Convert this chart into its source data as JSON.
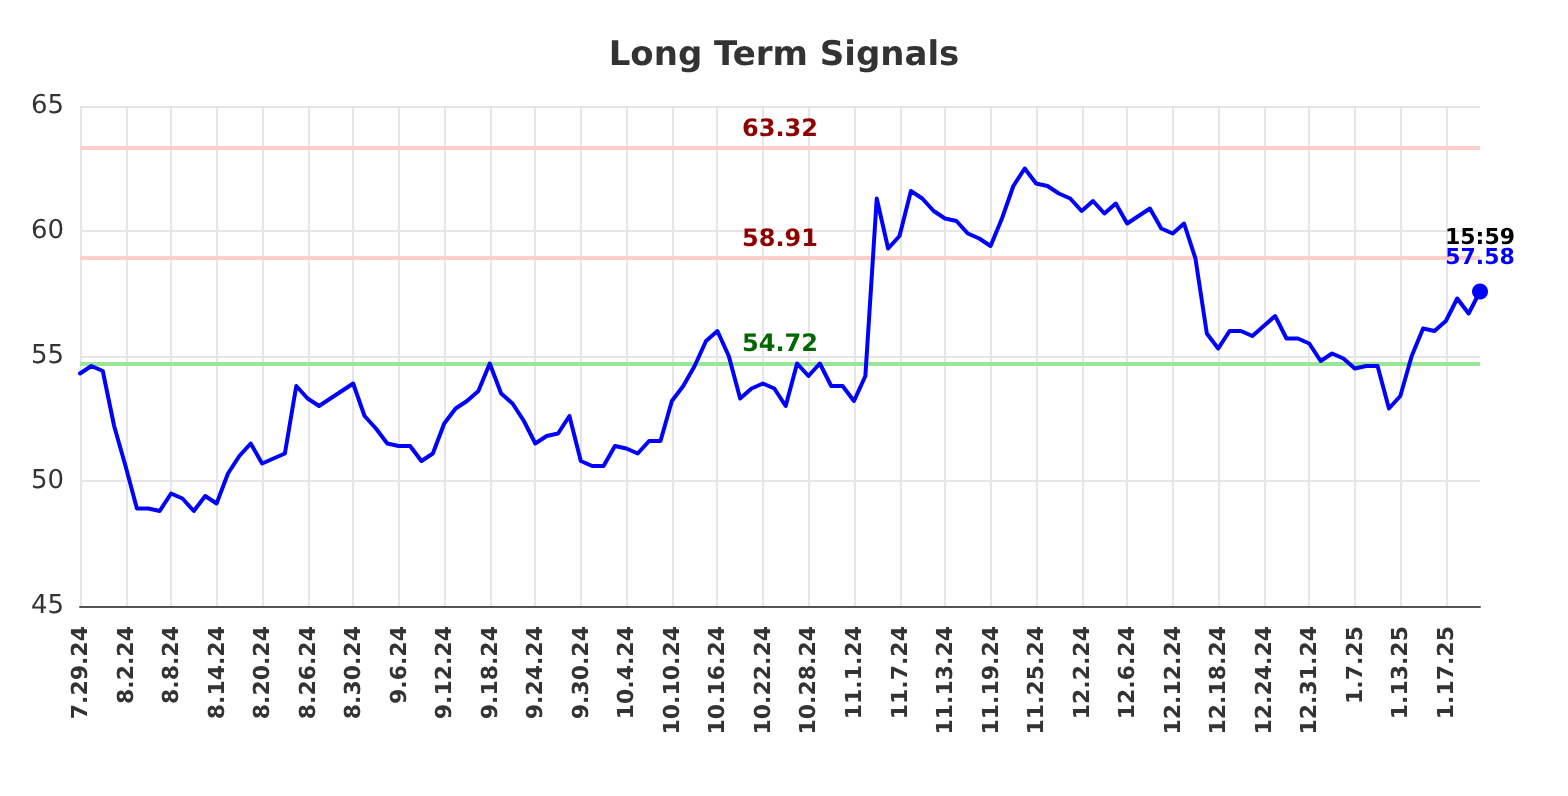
{
  "chart_data": {
    "type": "line",
    "title": "Long Term Signals",
    "categories": [
      "7.29.24",
      null,
      null,
      null,
      "8.2.24",
      null,
      null,
      null,
      "8.8.24",
      null,
      null,
      null,
      "8.14.24",
      null,
      null,
      null,
      "8.20.24",
      null,
      null,
      null,
      "8.26.24",
      null,
      null,
      null,
      "8.30.24",
      null,
      null,
      null,
      "9.6.24",
      null,
      null,
      null,
      "9.12.24",
      null,
      null,
      null,
      "9.18.24",
      null,
      null,
      null,
      "9.24.24",
      null,
      null,
      null,
      "9.30.24",
      null,
      null,
      null,
      "10.4.24",
      null,
      null,
      null,
      "10.10.24",
      null,
      null,
      null,
      "10.16.24",
      null,
      null,
      null,
      "10.22.24",
      null,
      null,
      null,
      "10.28.24",
      null,
      null,
      null,
      "11.1.24",
      null,
      null,
      null,
      "11.7.24",
      null,
      null,
      null,
      "11.13.24",
      null,
      null,
      null,
      "11.19.24",
      null,
      null,
      null,
      "11.25.24",
      null,
      null,
      null,
      "12.2.24",
      null,
      null,
      null,
      "12.6.24",
      null,
      null,
      null,
      "12.12.24",
      null,
      null,
      null,
      "12.18.24",
      null,
      null,
      null,
      "12.24.24",
      null,
      null,
      null,
      "12.31.24",
      null,
      null,
      null,
      "1.7.25",
      null,
      null,
      null,
      "1.13.25",
      null,
      null,
      null,
      "1.17.25",
      null,
      null,
      null
    ],
    "series": [
      {
        "color": "#0000ff",
        "values": [
          54.3,
          54.6,
          54.4,
          52.2,
          50.6,
          48.9,
          48.9,
          48.8,
          49.5,
          49.3,
          48.8,
          49.4,
          49.1,
          50.3,
          51.0,
          51.5,
          50.7,
          50.9,
          51.1,
          53.8,
          53.3,
          53.0,
          53.3,
          53.6,
          53.9,
          52.6,
          52.1,
          51.5,
          51.4,
          51.4,
          50.8,
          51.1,
          52.3,
          52.9,
          53.2,
          53.6,
          54.7,
          53.5,
          53.1,
          52.4,
          51.5,
          51.8,
          51.9,
          52.6,
          50.8,
          50.6,
          50.6,
          51.4,
          51.3,
          51.1,
          51.6,
          51.6,
          53.2,
          53.8,
          54.6,
          55.6,
          56.0,
          55.0,
          53.3,
          53.7,
          53.9,
          53.7,
          53.0,
          54.7,
          54.2,
          54.7,
          53.8,
          53.8,
          53.2,
          54.2,
          61.3,
          59.3,
          59.8,
          61.6,
          61.3,
          60.8,
          60.5,
          60.4,
          59.9,
          59.7,
          59.4,
          60.5,
          61.8,
          62.5,
          61.9,
          61.8,
          61.5,
          61.3,
          60.8,
          61.2,
          60.7,
          61.1,
          60.3,
          60.6,
          60.9,
          60.1,
          59.9,
          60.3,
          58.9,
          55.9,
          55.3,
          56.0,
          56.0,
          55.8,
          56.2,
          56.6,
          55.7,
          55.7,
          55.5,
          54.8,
          55.1,
          54.9,
          54.5,
          54.6,
          54.6,
          52.9,
          53.4,
          55.0,
          56.1,
          56.0,
          56.4,
          57.3,
          56.7,
          57.58
        ],
        "value_labels": [
          null,
          null,
          null,
          null,
          null,
          null,
          null,
          null,
          null,
          null,
          null,
          null,
          null,
          null,
          null,
          null,
          null,
          null,
          null,
          null,
          null,
          null,
          null,
          null,
          null,
          null,
          null,
          null,
          null,
          null,
          null,
          null,
          null,
          null,
          null,
          null,
          null,
          null,
          null,
          null,
          null,
          null,
          null,
          null,
          null,
          null,
          null,
          null,
          null,
          null,
          null,
          null,
          null,
          null,
          null,
          null,
          null,
          null,
          null,
          null,
          null,
          null,
          null,
          null,
          null,
          null,
          null,
          null,
          null,
          null,
          null,
          null,
          null,
          null,
          null,
          null,
          null,
          null,
          null,
          null,
          null,
          null,
          null,
          null,
          null,
          null,
          null,
          null,
          null,
          null,
          null,
          null,
          null,
          null,
          null,
          null,
          null,
          null,
          null,
          null,
          null,
          null,
          null,
          null,
          null,
          null,
          null,
          null,
          null,
          null,
          null,
          null,
          null,
          null,
          null,
          null,
          null,
          null,
          null,
          null,
          null,
          null,
          null,
          "57.58"
        ]
      }
    ],
    "annotations": [
      {
        "text": "15:59",
        "y": 57.58
      }
    ],
    "ref_lines": [
      {
        "axis": "y",
        "value": 63.32,
        "label": "63.32",
        "color": "#ffcccc"
      },
      {
        "axis": "y",
        "value": 58.91,
        "label": "58.91",
        "color": "#ffcccc"
      },
      {
        "axis": "y",
        "value": 54.72,
        "label": "54.72",
        "color": "#99e699"
      }
    ],
    "ylim": [
      45,
      65
    ],
    "yticks": [
      45,
      50,
      55,
      60,
      65
    ],
    "grid": true,
    "marker": "none",
    "line_style": "solid"
  }
}
